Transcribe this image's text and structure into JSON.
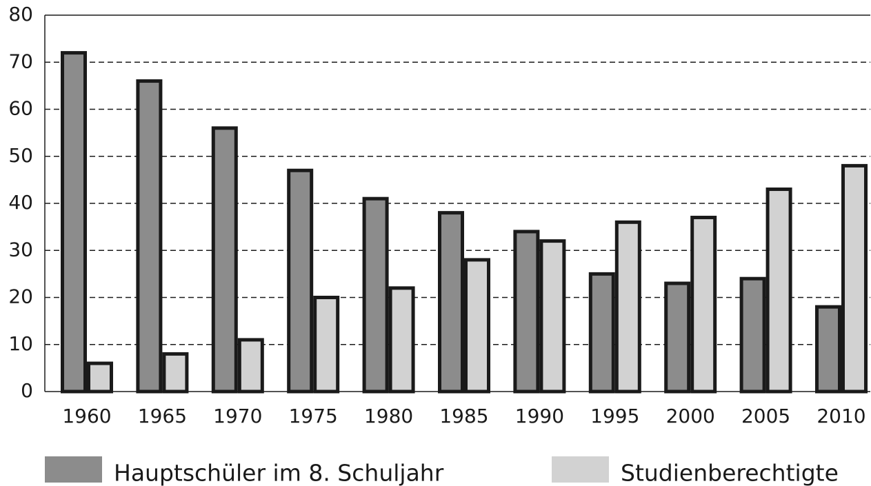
{
  "chart_data": {
    "type": "bar",
    "categories": [
      "1960",
      "1965",
      "1970",
      "1975",
      "1980",
      "1985",
      "1990",
      "1995",
      "2000",
      "2005",
      "2010"
    ],
    "series": [
      {
        "name": "Hauptschüler im 8. Schuljahr",
        "color": "#8c8c8c",
        "values": [
          72,
          66,
          56,
          47,
          41,
          38,
          34,
          25,
          23,
          24,
          18
        ]
      },
      {
        "name": "Studienberechtigte",
        "color": "#d2d2d2",
        "values": [
          6,
          8,
          11,
          20,
          22,
          28,
          32,
          36,
          37,
          43,
          48
        ]
      }
    ],
    "ylim": [
      0,
      80
    ],
    "yticks": [
      0,
      10,
      20,
      30,
      40,
      50,
      60,
      70,
      80
    ],
    "grid": true
  }
}
